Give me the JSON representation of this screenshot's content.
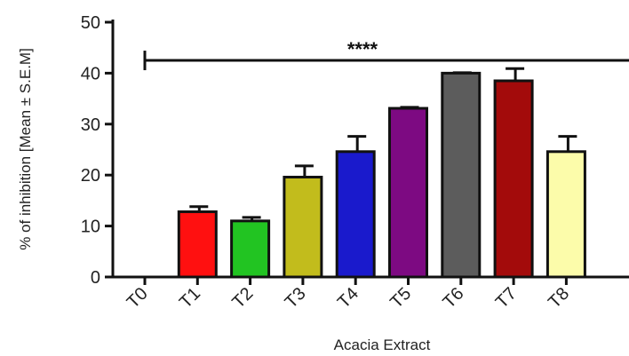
{
  "chart_data": {
    "type": "bar",
    "categories": [
      "T0",
      "T1",
      "T2",
      "T3",
      "T4",
      "T5",
      "T6",
      "T7",
      "T8"
    ],
    "values": [
      0,
      12.8,
      11.0,
      19.6,
      24.6,
      33.1,
      40.0,
      38.5,
      24.6
    ],
    "errors": [
      0,
      1.0,
      0.7,
      2.2,
      3.0,
      0.2,
      0.1,
      2.4,
      3.0
    ],
    "colors": [
      "#ffffff",
      "#ff1010",
      "#22c422",
      "#c2bc1c",
      "#1a1acc",
      "#7d0a82",
      "#5c5c5c",
      "#a30b0b",
      "#fcfcaa"
    ],
    "xlabel": "Acacia Extract",
    "ylabel": "% of inhibition [Mean ± S.E.M]",
    "ylim": [
      0,
      50
    ],
    "yticks": [
      0,
      10,
      20,
      30,
      40,
      50
    ],
    "significance": {
      "label": "****",
      "value": 42.5,
      "from": "T0"
    },
    "grid": false
  }
}
